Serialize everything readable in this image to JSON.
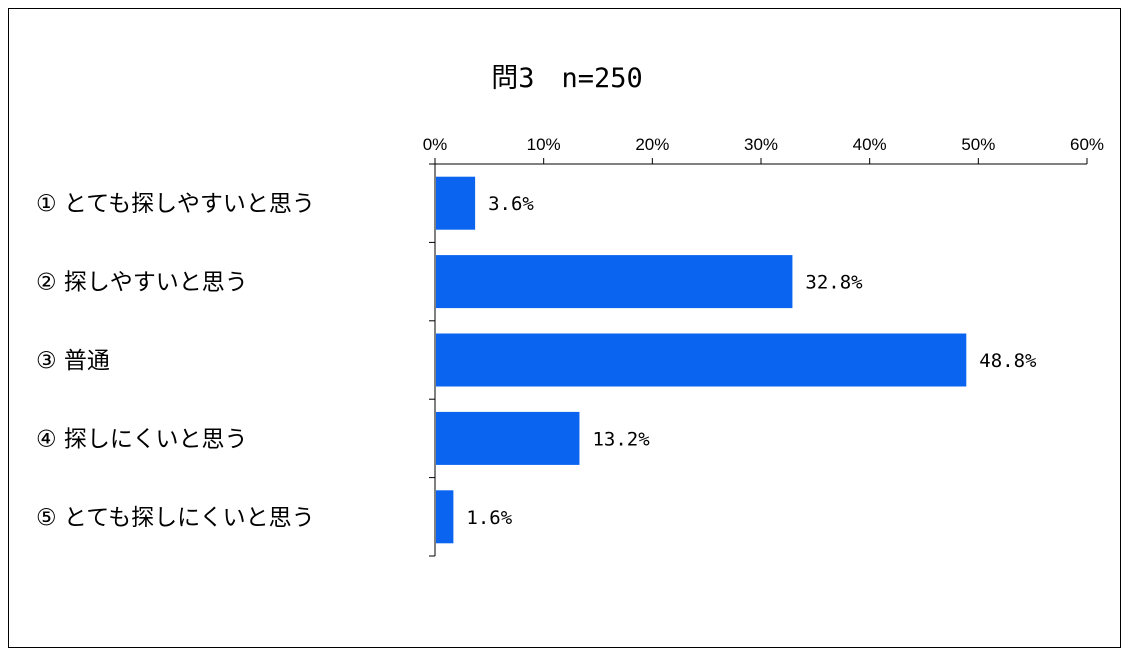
{
  "chart_data": {
    "type": "bar",
    "orientation": "horizontal",
    "title": "問3　n=250",
    "categories": [
      "① とても探しやすいと思う",
      "② 探しやすいと思う",
      "③ 普通",
      "④ 探しにくいと思う",
      "⑤ とても探しにくいと思う"
    ],
    "values": [
      3.6,
      32.8,
      48.8,
      13.2,
      1.6
    ],
    "data_labels": [
      "3.6%",
      "32.8%",
      "48.8%",
      "13.2%",
      "1.6%"
    ],
    "x_ticks": [
      "0%",
      "10%",
      "20%",
      "30%",
      "40%",
      "50%",
      "60%"
    ],
    "xlim": [
      0,
      60
    ],
    "axis_position": "top",
    "grid": false,
    "legend": "none",
    "bar_color": "#0a64f0"
  }
}
